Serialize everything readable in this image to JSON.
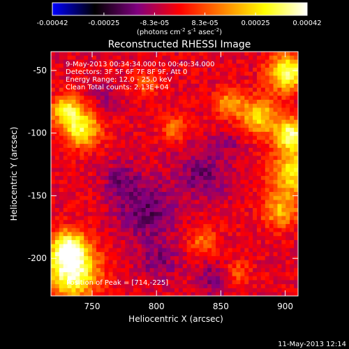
{
  "colorbar": {
    "tick_labels": [
      "-0.00042",
      "-0.00025",
      "-8.3e-05",
      "8.3e-05",
      "0.00025",
      "0.00042"
    ],
    "tick_values": [
      -0.00042,
      -0.00025,
      -8.3e-05,
      8.3e-05,
      0.00025,
      0.00042
    ],
    "range": [
      -0.00042,
      0.00042
    ],
    "stops": [
      "#0000ff",
      "#000000",
      "#800080",
      "#ff0000",
      "#ff8000",
      "#ffff00",
      "#ffffff"
    ]
  },
  "chart_data": {
    "type": "heatmap",
    "title": "Reconstructed RHESSI Image",
    "xlabel": "Heliocentric X (arcsec)",
    "ylabel": "Heliocentric Y (arcsec)",
    "xlim": [
      718,
      910
    ],
    "ylim": [
      -230,
      -35
    ],
    "x_ticks": [
      750,
      800,
      850,
      900
    ],
    "y_ticks": [
      -50,
      -100,
      -150,
      -200
    ],
    "x_tick_labels": [
      "750",
      "800",
      "850",
      "900"
    ],
    "y_tick_labels": [
      "-50",
      "-100",
      "-150",
      "-200"
    ],
    "annotations": [
      "9-May-2013 00:34:34.000 to 00:40:34.000",
      "Detectors: 3F 5F 6F 7F 8F 9F, Att 0",
      "Energy Range: 12.0 - 25.0 keV",
      "Clean   Total counts: 2.13E+04"
    ],
    "peak_label": "Position of Peak = [714,-225]",
    "hot_regions": [
      {
        "x": 733,
        "y": -210,
        "sigma": 14,
        "value": 0.00042
      },
      {
        "x": 730,
        "y": -190,
        "sigma": 10,
        "value": 0.00036
      },
      {
        "x": 740,
        "y": -95,
        "sigma": 10,
        "value": 0.00034
      },
      {
        "x": 728,
        "y": -80,
        "sigma": 8,
        "value": 0.0003
      },
      {
        "x": 900,
        "y": -50,
        "sigma": 10,
        "value": 0.0004
      },
      {
        "x": 903,
        "y": -100,
        "sigma": 9,
        "value": 0.0004
      },
      {
        "x": 905,
        "y": -130,
        "sigma": 12,
        "value": 0.0003
      },
      {
        "x": 895,
        "y": -160,
        "sigma": 10,
        "value": 0.00022
      },
      {
        "x": 878,
        "y": -85,
        "sigma": 10,
        "value": 0.00028
      },
      {
        "x": 855,
        "y": -75,
        "sigma": 8,
        "value": 0.0002
      },
      {
        "x": 812,
        "y": -95,
        "sigma": 7,
        "value": 0.00016
      },
      {
        "x": 790,
        "y": -60,
        "sigma": 7,
        "value": 0.00012
      },
      {
        "x": 835,
        "y": -185,
        "sigma": 8,
        "value": 0.00015
      },
      {
        "x": 860,
        "y": -210,
        "sigma": 7,
        "value": 0.00014
      }
    ],
    "cold_regions": [
      {
        "x": 790,
        "y": -160,
        "sigma": 16,
        "value": -0.00015
      },
      {
        "x": 835,
        "y": -130,
        "sigma": 15,
        "value": -0.00012
      },
      {
        "x": 770,
        "y": -135,
        "sigma": 10,
        "value": -0.0001
      },
      {
        "x": 800,
        "y": -200,
        "sigma": 12,
        "value": -0.0001
      },
      {
        "x": 845,
        "y": -215,
        "sigma": 10,
        "value": -0.00012
      },
      {
        "x": 760,
        "y": -70,
        "sigma": 8,
        "value": -8e-05
      },
      {
        "x": 855,
        "y": -105,
        "sigma": 7,
        "value": -8e-05
      }
    ]
  },
  "footer": {
    "timestamp": "11-May-2013 12:14"
  }
}
